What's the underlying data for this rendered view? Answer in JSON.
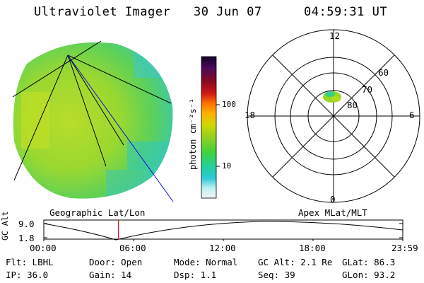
{
  "header": {
    "instrument": "Ultraviolet Imager",
    "date": "30 Jun 07",
    "time": "04:59:31 UT"
  },
  "colorbar": {
    "unit": "photon cm⁻²s⁻¹",
    "ticks": [
      "100",
      "10"
    ],
    "colors": [
      "#1a0030",
      "#4a0a5a",
      "#7a0a2a",
      "#b00010",
      "#e02020",
      "#ff7a00",
      "#ffb000",
      "#c8d400",
      "#7ccd1a",
      "#1ed060",
      "#22c8c0",
      "#bff0f0",
      "#f0f0f0"
    ]
  },
  "polar": {
    "mlt_labels": [
      "12",
      "18",
      "6",
      "0"
    ],
    "lat_labels": [
      "60",
      "70",
      "80"
    ]
  },
  "timeline": {
    "left_title": "Geographic Lat/Lon",
    "right_title": "Apex MLat/MLT",
    "yaxis_label": "GC Alt",
    "yticks": [
      "9.0",
      "1.8"
    ],
    "xticks": [
      "00:00",
      "06:00",
      "12:00",
      "18:00",
      "23:59"
    ],
    "current_fraction": 0.208
  },
  "status": {
    "row1": {
      "filter": "Flt: LBHL",
      "door": "Door: Open",
      "mode": "Mode: Normal",
      "gcalt": "GC Alt: 2.1 Re",
      "glat": "GLat:  86.3"
    },
    "row2": {
      "ip": "IP: 36.0",
      "gain": "Gain: 14",
      "dsp": "Dsp:    1.1",
      "seq": "Seq: 39",
      "glon": "GLon:  93.2"
    }
  }
}
